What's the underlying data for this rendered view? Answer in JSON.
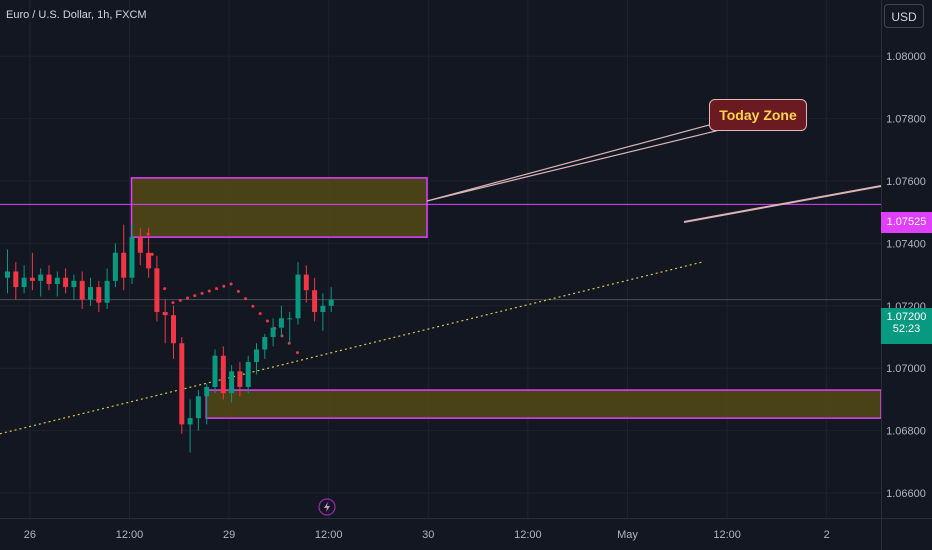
{
  "header": {
    "symbol_title": "Euro / U.S. Dollar, 1h, FXCM",
    "currency_label": "USD"
  },
  "price_axis": {
    "ticks": [
      "1.08000",
      "1.07800",
      "1.07600",
      "1.07400",
      "1.07200",
      "1.07000",
      "1.06800",
      "1.06600"
    ],
    "current_price": "1.07200",
    "countdown": "52:23",
    "line_price": "1.07525"
  },
  "time_axis": {
    "ticks": [
      "26",
      "12:00",
      "29",
      "12:00",
      "30",
      "12:00",
      "May",
      "12:00",
      "2"
    ]
  },
  "annotation": {
    "label": "Today Zone"
  },
  "colors": {
    "background": "#131722",
    "up": "#089981",
    "down": "#f23645",
    "zone_border": "#e040fb",
    "zone_fill": "#4d4417",
    "trend": "#d6c84a",
    "callout_bg": "#6b1a22",
    "callout_text": "#ffd54a"
  },
  "icons": {
    "event_marker": "lightning-icon"
  },
  "chart_data": {
    "type": "candlestick",
    "symbol": "EURUSD",
    "timeframe": "1h",
    "ylim": [
      1.0652,
      1.0818
    ],
    "candles": [
      {
        "o": 1.0729,
        "h": 1.0738,
        "l": 1.0724,
        "c": 1.0731
      },
      {
        "o": 1.0731,
        "h": 1.0734,
        "l": 1.0722,
        "c": 1.0726
      },
      {
        "o": 1.0726,
        "h": 1.0733,
        "l": 1.0724,
        "c": 1.0729
      },
      {
        "o": 1.0729,
        "h": 1.0737,
        "l": 1.0725,
        "c": 1.0728
      },
      {
        "o": 1.0728,
        "h": 1.0732,
        "l": 1.0723,
        "c": 1.073
      },
      {
        "o": 1.073,
        "h": 1.0733,
        "l": 1.0725,
        "c": 1.0727
      },
      {
        "o": 1.0727,
        "h": 1.0731,
        "l": 1.0723,
        "c": 1.0729
      },
      {
        "o": 1.0729,
        "h": 1.0732,
        "l": 1.0724,
        "c": 1.0726
      },
      {
        "o": 1.0726,
        "h": 1.073,
        "l": 1.0722,
        "c": 1.0728
      },
      {
        "o": 1.0728,
        "h": 1.0731,
        "l": 1.0719,
        "c": 1.0722
      },
      {
        "o": 1.0722,
        "h": 1.0729,
        "l": 1.072,
        "c": 1.0726
      },
      {
        "o": 1.0726,
        "h": 1.0728,
        "l": 1.0718,
        "c": 1.0721
      },
      {
        "o": 1.0721,
        "h": 1.0732,
        "l": 1.0719,
        "c": 1.0728
      },
      {
        "o": 1.0728,
        "h": 1.074,
        "l": 1.0726,
        "c": 1.0737
      },
      {
        "o": 1.0737,
        "h": 1.0746,
        "l": 1.0725,
        "c": 1.0729
      },
      {
        "o": 1.0729,
        "h": 1.0746,
        "l": 1.0727,
        "c": 1.0742
      },
      {
        "o": 1.0742,
        "h": 1.0745,
        "l": 1.0733,
        "c": 1.0737
      },
      {
        "o": 1.0737,
        "h": 1.0745,
        "l": 1.0729,
        "c": 1.0732
      },
      {
        "o": 1.0732,
        "h": 1.0736,
        "l": 1.0715,
        "c": 1.0718
      },
      {
        "o": 1.0718,
        "h": 1.0722,
        "l": 1.0708,
        "c": 1.0717
      },
      {
        "o": 1.0717,
        "h": 1.072,
        "l": 1.0703,
        "c": 1.0708
      },
      {
        "o": 1.0708,
        "h": 1.071,
        "l": 1.0679,
        "c": 1.0682
      },
      {
        "o": 1.0682,
        "h": 1.069,
        "l": 1.0673,
        "c": 1.0684
      },
      {
        "o": 1.0684,
        "h": 1.0693,
        "l": 1.068,
        "c": 1.0691
      },
      {
        "o": 1.0691,
        "h": 1.0695,
        "l": 1.0682,
        "c": 1.0694
      },
      {
        "o": 1.0694,
        "h": 1.0706,
        "l": 1.0692,
        "c": 1.0704
      },
      {
        "o": 1.0704,
        "h": 1.0707,
        "l": 1.069,
        "c": 1.0692
      },
      {
        "o": 1.0692,
        "h": 1.0701,
        "l": 1.0689,
        "c": 1.0699
      },
      {
        "o": 1.0699,
        "h": 1.0702,
        "l": 1.0691,
        "c": 1.0694
      },
      {
        "o": 1.0694,
        "h": 1.0704,
        "l": 1.0692,
        "c": 1.0702
      },
      {
        "o": 1.0702,
        "h": 1.0708,
        "l": 1.0698,
        "c": 1.0706
      },
      {
        "o": 1.0706,
        "h": 1.0711,
        "l": 1.0703,
        "c": 1.071
      },
      {
        "o": 1.071,
        "h": 1.0716,
        "l": 1.0707,
        "c": 1.0713
      },
      {
        "o": 1.0713,
        "h": 1.072,
        "l": 1.071,
        "c": 1.0716
      },
      {
        "o": 1.0716,
        "h": 1.0718,
        "l": 1.0708,
        "c": 1.0716
      },
      {
        "o": 1.0716,
        "h": 1.0734,
        "l": 1.0714,
        "c": 1.073
      },
      {
        "o": 1.073,
        "h": 1.0733,
        "l": 1.0721,
        "c": 1.0725
      },
      {
        "o": 1.0725,
        "h": 1.0729,
        "l": 1.0715,
        "c": 1.0718
      },
      {
        "o": 1.0718,
        "h": 1.0724,
        "l": 1.0712,
        "c": 1.072
      },
      {
        "o": 1.072,
        "h": 1.0726,
        "l": 1.0718,
        "c": 1.0722
      }
    ],
    "zones": [
      {
        "from_candle": 15,
        "to": "midweek",
        "top": 1.0761,
        "bottom": 1.0742
      },
      {
        "from_candle": 24,
        "to": "right_edge",
        "top": 1.0693,
        "bottom": 1.0684
      }
    ],
    "horizontal_line": 1.07525,
    "trend_line": {
      "from": {
        "candle": 0,
        "price": 1.0679
      },
      "to": {
        "candle": 84,
        "price": 1.0734
      }
    },
    "projection_path": [
      {
        "candle": 17,
        "price": 1.0743
      },
      {
        "candle": 18,
        "price": 1.073
      },
      {
        "candle": 20,
        "price": 1.0721
      },
      {
        "candle": 27,
        "price": 1.0727
      },
      {
        "candle": 34,
        "price": 1.0708
      },
      {
        "candle": 36,
        "price": 1.0702
      }
    ],
    "callout": {
      "label": "Today Zone",
      "position": "top-right"
    }
  }
}
